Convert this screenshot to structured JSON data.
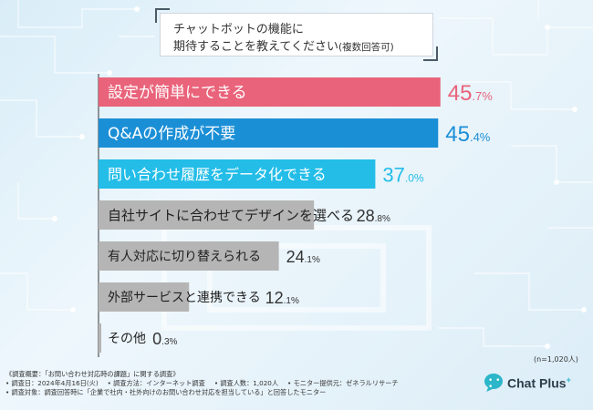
{
  "title": {
    "line1": "チャットボットの機能に",
    "line2_main": "期待することを教えてください",
    "line2_sub": "(複数回答可)"
  },
  "chart_data": {
    "type": "bar",
    "orientation": "horizontal",
    "unit": "%",
    "categories": [
      "設定が簡単にできる",
      "Q&Aの作成が不要",
      "問い合わせ履歴をデータ化できる",
      "自社サイトに合わせてデザインを選べる",
      "有人対応に切り替えられる",
      "外部サービスと連携できる",
      "その他"
    ],
    "values": [
      45.7,
      45.4,
      37.0,
      28.8,
      24.1,
      12.1,
      0.3
    ],
    "value_labels": [
      {
        "int": "45",
        "dec": ".7%"
      },
      {
        "int": "45",
        "dec": ".4%"
      },
      {
        "int": "37",
        "dec": ".0%"
      },
      {
        "int": "28",
        "dec": ".8%"
      },
      {
        "int": "24",
        "dec": ".1%"
      },
      {
        "int": "12",
        "dec": ".1%"
      },
      {
        "int": "0",
        "dec": ".3%"
      }
    ],
    "bar_colors": [
      "#e9637a",
      "#1b8fd6",
      "#23bde8",
      "#b5b5b5",
      "#b5b5b5",
      "#b5b5b5",
      "#b5b5b5"
    ],
    "value_colors": [
      "#e9637a",
      "#1b8fd6",
      "#23bde8",
      "#333333",
      "#333333",
      "#333333",
      "#333333"
    ],
    "label_colors": [
      "#ffffff",
      "#ffffff",
      "#ffffff",
      "#222222",
      "#222222",
      "#222222",
      "#222222"
    ],
    "xlim": [
      0,
      50
    ],
    "grid": false,
    "legend": "none"
  },
  "n_note": "(n=1,020人)",
  "footer": {
    "line1": "《調査概要：「お問い合わせ対応時の課題」に関する調査》",
    "line2_items": [
      "• 調査日：2024年4月16日(火)",
      "• 調査方法：インターネット調査",
      "• 調査人数：1,020人",
      "• モニター提供元：ゼネラルリサーチ"
    ],
    "line3": "• 調査対象：調査回答時に「企業で社内・社外向けのお問い合わせ対応を担当している」と回答したモニター"
  },
  "logo": {
    "dots": "• • •",
    "text": "Chat Plus",
    "sup": "+"
  }
}
